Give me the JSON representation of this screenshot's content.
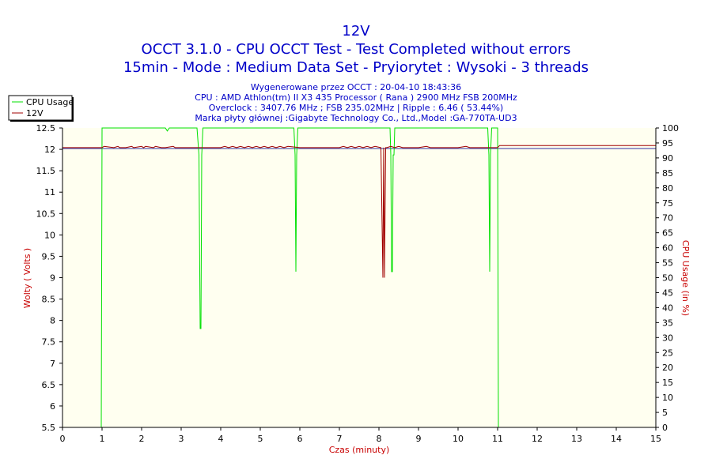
{
  "chart_data": {
    "type": "line",
    "title": "12V",
    "subtitle_lines": [
      "OCCT 3.1.0 - CPU OCCT Test - Test Completed without errors",
      "15min - Mode : Medium Data Set - Pryiorytet : Wysoki - 3 threads"
    ],
    "info_lines": [
      "Wygenerowane przez OCCT : 20-04-10 18:43:36",
      "CPU : AMD Athlon(tm) II X3 435 Processor ( Rana ) 2900 MHz FSB 200MHz",
      "Overclock : 3407.76 MHz ; FSB 235.02MHz | Ripple : 6.46 ( 53.44%)",
      "Marka płyty głównej :Gigabyte Technology Co., Ltd.,Model :GA-770TA-UD3"
    ],
    "xlabel": "Czas (minuty)",
    "ylabel_left": "Wolty ( Volts )",
    "ylabel_right": "CPU Usage (in %)",
    "xlim": [
      0,
      15
    ],
    "ylim_left": [
      5.5,
      12.5
    ],
    "ylim_right": [
      0,
      100
    ],
    "x_ticks": [
      "0",
      "1",
      "2",
      "3",
      "4",
      "5",
      "6",
      "7",
      "8",
      "9",
      "10",
      "11",
      "12",
      "13",
      "14",
      "15"
    ],
    "y_left_ticks": [
      "5.5",
      "6",
      "6.5",
      "7",
      "7.5",
      "8",
      "8.5",
      "9",
      "9.5",
      "10",
      "10.5",
      "11",
      "11.5",
      "12",
      "12.5"
    ],
    "y_right_ticks": [
      "0",
      "5",
      "10",
      "15",
      "20",
      "25",
      "30",
      "35",
      "40",
      "45",
      "50",
      "55",
      "60",
      "65",
      "70",
      "75",
      "80",
      "85",
      "90",
      "95",
      "100"
    ],
    "grid": false,
    "legend_position": "top-left",
    "colors": {
      "cpu": "#00e000",
      "v12": "#a00000",
      "title": "#0000c8",
      "plot_bg": "#fffff0",
      "xlabel": "#c80000",
      "ylabel": "#c80000",
      "flat_line": "#3030a0"
    },
    "series": [
      {
        "name": "CPU Usage",
        "axis": "right",
        "x": [
          0.0,
          0.98,
          1.0,
          1.01,
          1.02,
          1.03,
          1.05,
          1.07,
          1.1,
          1.2,
          1.3,
          1.4,
          1.5,
          1.7,
          2.0,
          2.5,
          2.6,
          2.65,
          2.7,
          3.0,
          3.4,
          3.45,
          3.48,
          3.5,
          3.52,
          3.55,
          3.6,
          4.0,
          5.0,
          5.85,
          5.88,
          5.9,
          5.92,
          5.95,
          6.0,
          6.5,
          7.0,
          8.0,
          8.28,
          8.3,
          8.32,
          8.34,
          8.36,
          8.38,
          8.4,
          8.45,
          9.0,
          10.0,
          10.75,
          10.78,
          10.8,
          10.82,
          10.85,
          10.88,
          10.92,
          10.96,
          11.0,
          11.02,
          11.05,
          11.1,
          12.0,
          13.0,
          14.0,
          15.0
        ],
        "values": [
          0,
          0,
          100,
          100,
          100,
          100,
          100,
          100,
          100,
          100,
          100,
          100,
          100,
          100,
          100,
          100,
          100,
          99,
          100,
          100,
          100,
          91,
          33,
          33,
          91,
          100,
          100,
          100,
          100,
          100,
          91,
          52,
          91,
          100,
          100,
          100,
          100,
          100,
          100,
          91,
          52,
          52,
          91,
          91,
          100,
          100,
          100,
          100,
          100,
          91,
          52,
          91,
          100,
          100,
          100,
          100,
          100,
          0,
          0,
          0,
          0,
          0,
          0,
          0
        ]
      },
      {
        "name": "12V",
        "axis": "left",
        "x": [
          0.0,
          1.0,
          1.05,
          1.3,
          1.4,
          1.45,
          1.6,
          1.75,
          1.8,
          2.0,
          2.05,
          2.1,
          2.3,
          2.35,
          2.5,
          2.6,
          2.8,
          2.85,
          3.2,
          4.0,
          4.1,
          4.2,
          4.3,
          4.4,
          4.5,
          4.6,
          4.7,
          4.8,
          4.9,
          5.0,
          5.1,
          5.2,
          5.3,
          5.4,
          5.5,
          5.6,
          5.7,
          6.0,
          7.0,
          7.1,
          7.2,
          7.3,
          7.4,
          7.5,
          7.6,
          7.7,
          7.8,
          7.9,
          8.05,
          8.1,
          8.12,
          8.14,
          8.17,
          8.2,
          8.3,
          8.4,
          8.5,
          8.6,
          9.0,
          9.2,
          9.3,
          10.0,
          10.2,
          10.3,
          11.0,
          11.05,
          15.0
        ],
        "values": [
          12.04,
          12.04,
          12.07,
          12.04,
          12.07,
          12.04,
          12.04,
          12.07,
          12.04,
          12.07,
          12.04,
          12.07,
          12.04,
          12.07,
          12.04,
          12.04,
          12.07,
          12.04,
          12.04,
          12.04,
          12.07,
          12.04,
          12.07,
          12.04,
          12.07,
          12.04,
          12.07,
          12.04,
          12.07,
          12.04,
          12.07,
          12.04,
          12.07,
          12.04,
          12.07,
          12.04,
          12.07,
          12.04,
          12.04,
          12.07,
          12.04,
          12.07,
          12.04,
          12.07,
          12.04,
          12.07,
          12.04,
          12.07,
          12.04,
          9.0,
          12.04,
          9.0,
          12.04,
          12.04,
          12.07,
          12.04,
          12.07,
          12.04,
          12.04,
          12.07,
          12.04,
          12.04,
          12.07,
          12.04,
          12.04,
          12.09,
          12.09
        ]
      }
    ]
  }
}
